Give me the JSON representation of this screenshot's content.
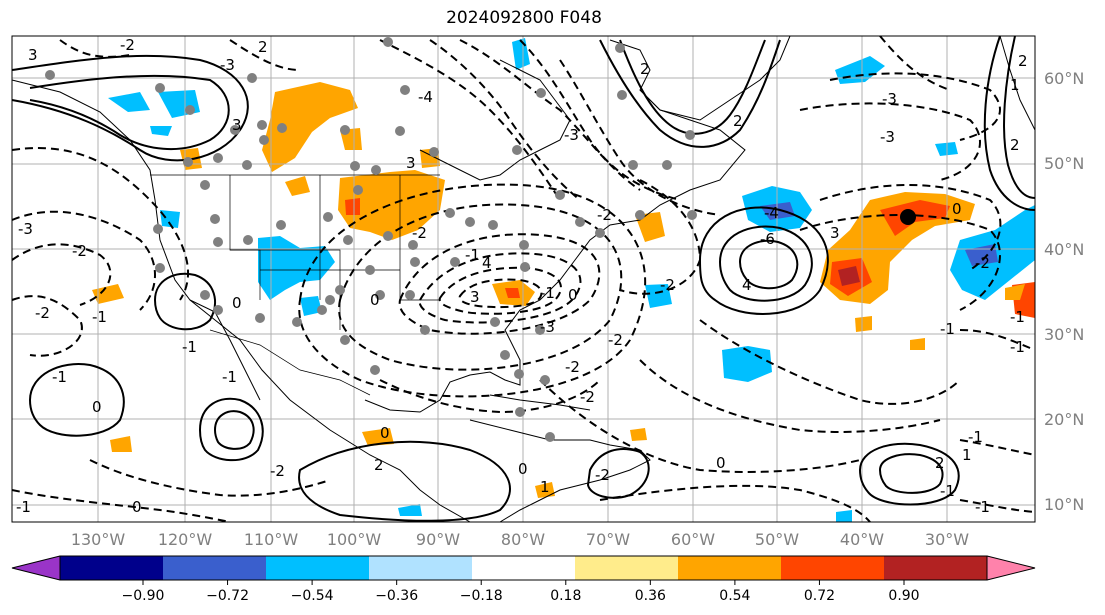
{
  "title": "2024092800 F048",
  "lat_labels": [
    "60°N",
    "50°N",
    "40°N",
    "30°N",
    "20°N",
    "10°N"
  ],
  "lon_labels": [
    "130°W",
    "120°W",
    "110°W",
    "100°W",
    "90°W",
    "80°W",
    "70°W",
    "60°W",
    "50°W",
    "40°W",
    "30°W"
  ],
  "colorbar": {
    "ticks": [
      "−0.90",
      "−0.72",
      "−0.54",
      "−0.36",
      "−0.18",
      "0.18",
      "0.36",
      "0.54",
      "0.72",
      "0.90"
    ],
    "colors": [
      "#9a34c8",
      "#00008b",
      "#3a5fcd",
      "#00bfff",
      "#b0e2ff",
      "#ffffff",
      "#ffec8b",
      "#ffa500",
      "#ff4500",
      "#b22222",
      "#ff82ab"
    ]
  },
  "contour_labels": [
    "3",
    "-2",
    "2",
    "-3",
    "-4",
    "3",
    "3",
    "-3",
    "1",
    "2",
    "-3",
    "-2",
    "-2",
    "-1",
    "-2",
    "-1",
    "4",
    "3",
    "-3",
    "-2",
    "-2",
    "-3",
    "2",
    "0",
    "-2",
    "-1",
    "-1",
    "0",
    "-1",
    "-6",
    "4",
    "-4",
    "2",
    "2",
    "-3",
    "0",
    "3",
    "-2",
    "-1",
    "-1",
    "-2",
    "-2",
    "-2",
    "2",
    "-1",
    "0",
    "0",
    "1",
    "0",
    "-2",
    "0",
    "2",
    "-1",
    "-1",
    "1",
    "-1",
    "0",
    "0",
    "-1",
    "-1"
  ]
}
